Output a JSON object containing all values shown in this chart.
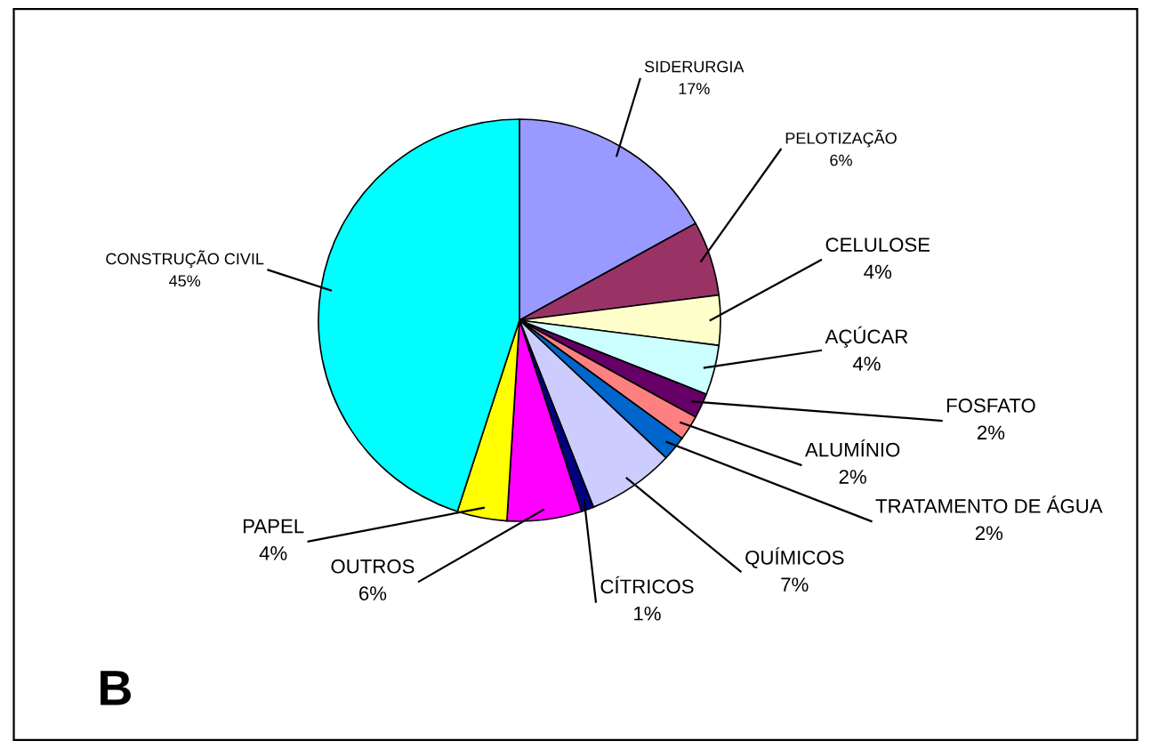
{
  "chart_data": {
    "type": "pie",
    "categories": [
      "SIDERURGIA",
      "PELOTIZAÇÃO",
      "CELULOSE",
      "AÇÚCAR",
      "FOSFATO",
      "ALUMÍNIO",
      "TRATAMENTO DE ÁGUA",
      "QUÍMICOS",
      "CÍTRICOS",
      "OUTROS",
      "PAPEL",
      "CONSTRUÇÃO CIVIL"
    ],
    "values": [
      17,
      6,
      4,
      4,
      2,
      2,
      2,
      7,
      1,
      6,
      4,
      45
    ],
    "value_labels": [
      "17%",
      "6%",
      "4%",
      "4%",
      "2%",
      "2%",
      "2%",
      "7%",
      "1%",
      "6%",
      "4%",
      "45%"
    ],
    "colors": [
      "#9999ff",
      "#993366",
      "#ffffcc",
      "#ccffff",
      "#660066",
      "#ff8080",
      "#0066cc",
      "#ccccff",
      "#000080",
      "#ff00ff",
      "#ffff00",
      "#00ffff"
    ],
    "annotations": [
      "B"
    ]
  }
}
